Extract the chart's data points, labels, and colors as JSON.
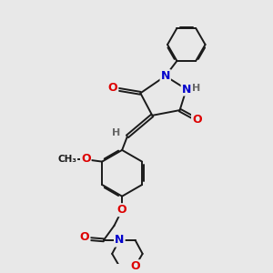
{
  "bg_color": "#e8e8e8",
  "bond_color": "#1a1a1a",
  "bond_width": 1.4,
  "atom_colors": {
    "O": "#dd0000",
    "N": "#0000cc",
    "H": "#666666",
    "C": "#1a1a1a"
  }
}
